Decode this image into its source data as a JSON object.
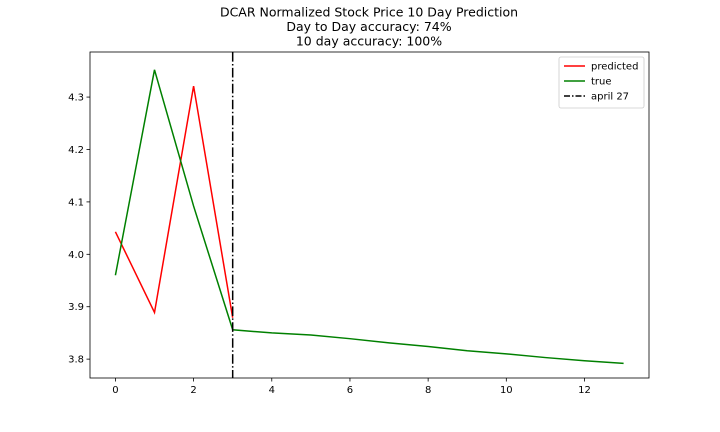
{
  "chart_data": {
    "type": "line",
    "title_lines": [
      "DCAR Normalized Stock Price 10 Day Prediction",
      "Day to Day accuracy: 74%",
      "10 day accuracy: 100%"
    ],
    "xlabel": "",
    "ylabel": "",
    "xlim": [
      -0.65,
      13.65
    ],
    "ylim": [
      3.764,
      4.386
    ],
    "xticks": [
      0,
      2,
      4,
      6,
      8,
      10,
      12
    ],
    "yticks": [
      3.8,
      3.9,
      4.0,
      4.1,
      4.2,
      4.3
    ],
    "xtick_labels": [
      "0",
      "2",
      "4",
      "6",
      "8",
      "10",
      "12"
    ],
    "ytick_labels": [
      "3.8",
      "3.9",
      "4.0",
      "4.1",
      "4.2",
      "4.3"
    ],
    "grid": false,
    "legend_position": "top-right",
    "series": [
      {
        "name": "predicted",
        "color": "#ff0000",
        "style": "solid",
        "x": [
          0,
          1,
          2,
          3
        ],
        "y": [
          4.043,
          3.889,
          4.321,
          3.879
        ]
      },
      {
        "name": "true",
        "color": "#008000",
        "style": "solid",
        "x": [
          0,
          1,
          2,
          3,
          4,
          5,
          6,
          7,
          8,
          9,
          10,
          11,
          12,
          13
        ],
        "y": [
          3.96,
          4.352,
          4.092,
          3.856,
          3.85,
          3.846,
          3.839,
          3.831,
          3.824,
          3.816,
          3.81,
          3.803,
          3.797,
          3.792
        ]
      }
    ],
    "vlines": [
      {
        "name": "april 27",
        "x": 3,
        "color": "#000000",
        "style": "dashdot"
      }
    ]
  }
}
